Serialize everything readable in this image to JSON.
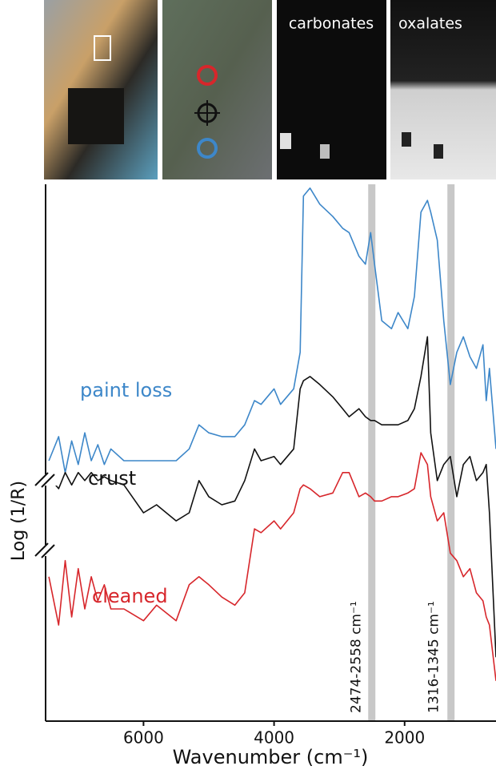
{
  "chart_data": {
    "type": "line",
    "panels": [
      "carbonates",
      "oxalates"
    ],
    "x_label": "Wavenumber (cm⁻¹)",
    "y_label": "Log (1/R)",
    "xlim": [
      7500,
      600
    ],
    "ylim": [
      0,
      100
    ],
    "xticks": [
      6000,
      4000,
      2000
    ],
    "bands": [
      {
        "range": [
          2474,
          2558
        ],
        "label": "2474-2558 cm⁻¹",
        "color": "#c8c8c8"
      },
      {
        "range": [
          1316,
          1345
        ],
        "label": "1316-1345 cm⁻¹",
        "color": "#c8c8c8"
      }
    ],
    "x": [
      7450,
      7300,
      7200,
      7100,
      7000,
      6900,
      6800,
      6700,
      6600,
      6500,
      6300,
      6000,
      5800,
      5500,
      5300,
      5150,
      5000,
      4800,
      4600,
      4450,
      4300,
      4200,
      4000,
      3900,
      3700,
      3600,
      3550,
      3450,
      3300,
      3100,
      2950,
      2850,
      2700,
      2600,
      2520,
      2460,
      2350,
      2200,
      2100,
      1950,
      1850,
      1750,
      1650,
      1600,
      1500,
      1400,
      1300,
      1200,
      1100,
      1000,
      900,
      800,
      750,
      700,
      600
    ],
    "series": [
      {
        "name": "paint loss",
        "color": "#3d87c9",
        "values": [
          48.5,
          53.0,
          46.3,
          52.2,
          47.8,
          53.7,
          48.5,
          51.5,
          47.8,
          50.7,
          48.5,
          48.5,
          48.5,
          48.5,
          50.7,
          55.2,
          53.7,
          53.0,
          53.0,
          55.2,
          59.7,
          59.0,
          61.9,
          59.0,
          61.9,
          68.7,
          97.8,
          99.3,
          96.3,
          94.0,
          91.8,
          91.0,
          86.6,
          85.1,
          91.0,
          85.1,
          74.6,
          73.1,
          76.1,
          73.1,
          79.1,
          94.8,
          97.0,
          94.8,
          89.6,
          74.6,
          62.7,
          68.7,
          71.6,
          67.9,
          65.7,
          70.1,
          59.7,
          65.7,
          50.7
        ]
      },
      {
        "name": "crust",
        "color": "#111111",
        "values": [
          45.5,
          43.3,
          46.3,
          44.0,
          46.3,
          44.8,
          46.3,
          44.8,
          45.5,
          44.8,
          44.0,
          38.8,
          40.3,
          37.3,
          38.8,
          44.8,
          41.8,
          40.3,
          41.0,
          44.8,
          50.7,
          48.5,
          49.3,
          47.8,
          50.7,
          61.9,
          63.4,
          64.2,
          62.7,
          60.4,
          58.2,
          56.7,
          58.2,
          56.7,
          56.0,
          56.0,
          55.2,
          55.2,
          55.2,
          56.0,
          58.2,
          64.2,
          71.6,
          53.7,
          44.8,
          47.8,
          49.3,
          41.8,
          47.8,
          49.3,
          44.8,
          46.3,
          47.8,
          38.8,
          11.9
        ]
      },
      {
        "name": "cleaned",
        "color": "#d7262b",
        "values": [
          26.9,
          17.9,
          29.9,
          19.4,
          28.4,
          20.9,
          26.9,
          22.4,
          25.4,
          20.9,
          20.9,
          18.7,
          21.6,
          18.7,
          25.4,
          26.9,
          25.4,
          23.1,
          21.6,
          23.9,
          35.8,
          35.1,
          37.3,
          35.8,
          38.8,
          43.3,
          44.0,
          43.3,
          41.8,
          42.5,
          46.3,
          46.3,
          41.8,
          42.5,
          41.8,
          41.0,
          41.0,
          41.8,
          41.8,
          42.5,
          43.3,
          50.0,
          47.8,
          41.8,
          37.3,
          38.8,
          31.3,
          29.9,
          26.9,
          28.4,
          23.9,
          22.4,
          19.4,
          17.9,
          7.5
        ]
      }
    ]
  }
}
